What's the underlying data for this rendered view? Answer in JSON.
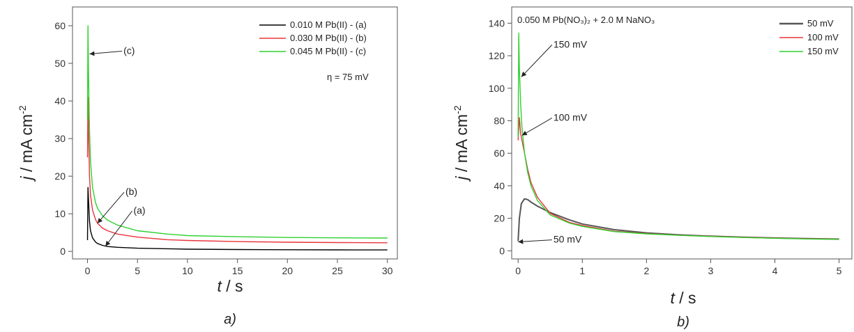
{
  "chart_data": [
    {
      "panel": "a)",
      "type": "line",
      "xlabel_var": "t",
      "xlabel_unit": " / s",
      "ylabel_var": "j",
      "ylabel_unit": " / mA cm",
      "ylabel_sup": "-2",
      "xlim": [
        -1.5,
        31
      ],
      "ylim": [
        -2,
        65
      ],
      "xticks": [
        0,
        5,
        10,
        15,
        20,
        25,
        30
      ],
      "yticks": [
        0,
        10,
        20,
        30,
        40,
        50,
        60
      ],
      "legend_position": "top-right",
      "eta_label": "η = 75 mV",
      "series": [
        {
          "name": "0.010 M Pb(II) - (a)",
          "color": "#000000",
          "x": [
            0,
            0.05,
            0.1,
            0.2,
            0.3,
            0.5,
            0.8,
            1,
            1.5,
            2,
            3,
            5,
            8,
            10,
            15,
            20,
            25,
            30
          ],
          "y": [
            3,
            17,
            14,
            8,
            5.5,
            3.6,
            2.5,
            2.1,
            1.6,
            1.3,
            1.1,
            0.85,
            0.7,
            0.6,
            0.5,
            0.45,
            0.4,
            0.38
          ]
        },
        {
          "name": "0.030 M Pb(II) - (b)",
          "color": "#e8333a",
          "x": [
            0,
            0.05,
            0.1,
            0.2,
            0.3,
            0.5,
            0.8,
            1,
            1.5,
            2,
            3,
            5,
            8,
            10,
            15,
            20,
            25,
            30
          ],
          "y": [
            25,
            41,
            33,
            20,
            15,
            11,
            8.5,
            7.5,
            6.2,
            5.5,
            4.6,
            3.8,
            3.1,
            2.9,
            2.6,
            2.45,
            2.35,
            2.3
          ]
        },
        {
          "name": "0.045 M Pb(II) - (c)",
          "color": "#2fd12f",
          "x": [
            0,
            0.05,
            0.1,
            0.2,
            0.3,
            0.5,
            0.8,
            1,
            1.5,
            2,
            3,
            5,
            8,
            10,
            15,
            20,
            25,
            30
          ],
          "y": [
            35,
            60,
            48,
            32,
            24,
            17,
            13,
            11.5,
            9.5,
            8.3,
            7,
            5.5,
            4.6,
            4.2,
            3.9,
            3.7,
            3.6,
            3.55
          ]
        }
      ],
      "annotations": [
        {
          "text": "(c)",
          "x": 3.6,
          "y": 52.5,
          "ax": 0.2,
          "ay": 52.5
        },
        {
          "text": "(b)",
          "x": 3.8,
          "y": 15,
          "ax": 1,
          "ay": 7.5
        },
        {
          "text": "(a)",
          "x": 4.6,
          "y": 10,
          "ax": 1.8,
          "ay": 1.4
        }
      ],
      "caption": "a)"
    },
    {
      "panel": "b)",
      "type": "line",
      "xlabel_var": "t",
      "xlabel_unit": " / s",
      "ylabel_var": "j",
      "ylabel_unit": " / mA cm",
      "ylabel_sup": "-2",
      "xlim": [
        -0.1,
        5.2
      ],
      "ylim": [
        -5,
        150
      ],
      "xticks": [
        0,
        1,
        2,
        3,
        4,
        5
      ],
      "yticks": [
        0,
        20,
        40,
        60,
        80,
        100,
        120,
        140
      ],
      "legend_position": "top-right",
      "solution_label": "0.050 M Pb(NO₃)₂ + 2.0 M NaNO₃",
      "series": [
        {
          "name": "50 mV",
          "color": "#555555",
          "x": [
            0,
            0.02,
            0.05,
            0.1,
            0.15,
            0.2,
            0.3,
            0.5,
            0.8,
            1,
            1.5,
            2,
            2.5,
            3,
            3.5,
            4,
            4.5,
            5
          ],
          "y": [
            6,
            20,
            29,
            32,
            31.5,
            30,
            27.5,
            23.5,
            19,
            16.5,
            13,
            11,
            9.8,
            9,
            8.4,
            7.9,
            7.5,
            7.2
          ]
        },
        {
          "name": "100 mV",
          "color": "#e8333a",
          "x": [
            0,
            0.02,
            0.04,
            0.06,
            0.1,
            0.15,
            0.2,
            0.3,
            0.5,
            0.8,
            1,
            1.5,
            2,
            2.5,
            3,
            3.5,
            4,
            4.5,
            5
          ],
          "y": [
            68,
            82,
            72,
            68,
            60,
            50,
            42,
            33,
            23,
            17.5,
            15.5,
            12,
            10.6,
            9.6,
            8.9,
            8.3,
            7.8,
            7.4,
            7.1
          ]
        },
        {
          "name": "150 mV",
          "color": "#2fd12f",
          "x": [
            0,
            0.01,
            0.02,
            0.04,
            0.06,
            0.1,
            0.15,
            0.2,
            0.3,
            0.5,
            0.8,
            1,
            1.5,
            2,
            2.5,
            3,
            3.5,
            4,
            4.5,
            5
          ],
          "y": [
            70,
            134,
            112,
            90,
            76,
            60,
            48,
            40,
            31,
            22,
            17,
            15,
            11.8,
            10.4,
            9.5,
            8.8,
            8.2,
            7.7,
            7.3,
            7
          ]
        }
      ],
      "annotations": [
        {
          "text": "150 mV",
          "x": 0.55,
          "y": 125,
          "ax": 0.05,
          "ay": 107
        },
        {
          "text": "100 mV",
          "x": 0.55,
          "y": 80,
          "ax": 0.06,
          "ay": 71
        },
        {
          "text": "50 mV",
          "x": 0.55,
          "y": 5,
          "ax": 0.0,
          "ay": 5.5
        }
      ],
      "caption": "b)"
    }
  ]
}
